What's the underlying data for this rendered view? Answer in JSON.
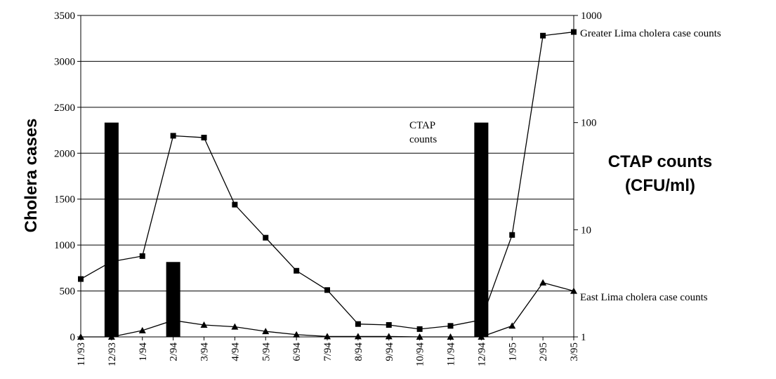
{
  "chart_data": {
    "type": "combo",
    "ylabel": "Cholera cases",
    "y2label": [
      "CTAP counts",
      "(CFU/ml)"
    ],
    "categories": [
      "11/93",
      "12/93",
      "1/94",
      "2/94",
      "3/94",
      "4/94",
      "5/94",
      "6/94",
      "7/94",
      "8/94",
      "9/94",
      "10/94",
      "11/94",
      "12/94",
      "1/95",
      "2/95",
      "3/95"
    ],
    "ylim": [
      0,
      3500
    ],
    "yticks": [
      0,
      500,
      1000,
      1500,
      2000,
      2500,
      3000,
      3500
    ],
    "y2lim": [
      1,
      1000
    ],
    "y2ticks": [
      1,
      10,
      100,
      1000
    ],
    "y2scale": "log",
    "grid": true,
    "series": [
      {
        "name": "CTAP counts",
        "type": "bar",
        "axis": "y2",
        "color": "#000000",
        "values": [
          null,
          100,
          null,
          5,
          null,
          null,
          null,
          null,
          null,
          null,
          null,
          null,
          null,
          100,
          null,
          null,
          null
        ]
      },
      {
        "name": "Greater Lima cholera case counts",
        "type": "line",
        "marker": "square",
        "color": "#000000",
        "values": [
          630,
          820,
          880,
          2190,
          2170,
          1440,
          1080,
          720,
          510,
          140,
          130,
          85,
          120,
          185,
          1110,
          3280,
          3320
        ]
      },
      {
        "name": "East Lima cholera case counts",
        "type": "line",
        "marker": "triangle",
        "color": "#000000",
        "values": [
          0,
          0,
          70,
          180,
          130,
          110,
          60,
          25,
          5,
          5,
          5,
          0,
          0,
          0,
          120,
          590,
          500
        ]
      }
    ]
  }
}
